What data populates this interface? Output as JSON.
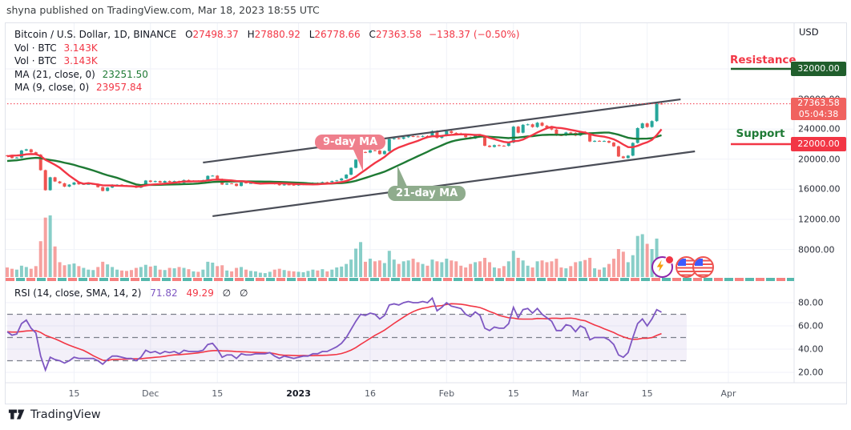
{
  "watermark": "shyna published on TradingView.com, Mar 18, 2023 18:55 UTC",
  "legend": {
    "symbol": "Bitcoin / U.S. Dollar, 1D, BINANCE",
    "o_label": "O",
    "o": "27498.37",
    "h_label": "H",
    "h": "27880.92",
    "l_label": "L",
    "l": "26778.66",
    "c_label": "C",
    "c": "27363.58",
    "change": "−138.37 (−0.50%)",
    "vol1_label": "Vol · BTC",
    "vol1_value": "3.143K",
    "vol2_label": "Vol · BTC",
    "vol2_value": "3.143K",
    "ma21_label": "MA (21, close, 0)",
    "ma21_value": "23251.50",
    "ma9_label": "MA (9, close, 0)",
    "ma9_value": "23957.84"
  },
  "rsi_legend": {
    "label": "RSI (14, close, SMA, 14, 2)",
    "value1": "71.82",
    "value2": "49.29",
    "empty1": "∅",
    "empty2": "∅"
  },
  "annotations": {
    "ma9_callout": "9-day MA",
    "ma21_callout": "21-day MA",
    "resistance_label": "Resistance",
    "support_label": "Support"
  },
  "price_axis": {
    "currency": "USD",
    "labels": [
      {
        "text": "28000.00",
        "value": 28000
      },
      {
        "text": "24000.00",
        "value": 24000
      },
      {
        "text": "20000.00",
        "value": 20000
      },
      {
        "text": "16000.00",
        "value": 16000
      },
      {
        "text": "12000.00",
        "value": 12000
      },
      {
        "text": "8000.00",
        "value": 8000
      }
    ],
    "resistance_badge": "32000.00",
    "support_badge": "22000.00",
    "price_badge": {
      "price": "27363.58",
      "countdown": "05:04:38"
    }
  },
  "rsi_axis": {
    "labels": [
      {
        "text": "80.00",
        "value": 80
      },
      {
        "text": "60.00",
        "value": 60
      },
      {
        "text": "40.00",
        "value": 40
      },
      {
        "text": "20.00",
        "value": 20
      }
    ]
  },
  "time_axis": {
    "labels": [
      {
        "text": "15",
        "index": 14,
        "bold": false
      },
      {
        "text": "Dec",
        "index": 30,
        "bold": false
      },
      {
        "text": "15",
        "index": 44,
        "bold": false
      },
      {
        "text": "2023",
        "index": 61,
        "bold": true
      },
      {
        "text": "16",
        "index": 76,
        "bold": false
      },
      {
        "text": "Feb",
        "index": 92,
        "bold": false
      },
      {
        "text": "15",
        "index": 106,
        "bold": false
      },
      {
        "text": "Mar",
        "index": 120,
        "bold": false
      },
      {
        "text": "15",
        "index": 134,
        "bold": false
      },
      {
        "text": "Apr",
        "index": 151,
        "bold": false
      }
    ]
  },
  "footer": {
    "brand": "TradingView"
  },
  "colors": {
    "up": "#26a69a",
    "down": "#ef5350",
    "ma_fast": "#f23645",
    "ma_slow": "#1e7a34",
    "rsi": "#7e57c2",
    "rsi_signal": "#f23645",
    "rsi_band": "rgba(126,87,194,0.09)",
    "rsi_dash": "#7b7f8a",
    "trendline": "#4a4d57",
    "price_line": "#f23645",
    "resistance_line": "#205e2c",
    "support_line": "#f23645",
    "grid": "#f0f2f8",
    "border": "#e0e3eb"
  },
  "chart_data": {
    "type": "candlestick+volume+rsi",
    "title": "Bitcoin / U.S. Dollar, 1D, BINANCE",
    "date_range": "2022-11-01 to 2023-03-18",
    "last_candle": {
      "open": 27498.37,
      "high": 27880.92,
      "low": 26778.66,
      "close": 27363.58,
      "change": -138.37,
      "change_pct": -0.5,
      "volume_btc_k": 3.143
    },
    "levels": {
      "resistance": 32000,
      "support": 22000,
      "last_price": 27363.58
    },
    "ma_periods": {
      "fast": 9,
      "slow": 21
    },
    "price_axis_ticks": [
      32000,
      28000,
      24000,
      20000,
      16000,
      12000,
      8000
    ],
    "rsi_axis_ticks": [
      80,
      60,
      40,
      20
    ],
    "rsi_levels": {
      "overbought": 70,
      "middle": 50,
      "oversold": 30,
      "last_rsi": 71.82,
      "last_signal": 49.29
    },
    "warmup_closes": [
      19050,
      19150,
      19380,
      19180,
      19070,
      19260,
      19550,
      19330,
      19040,
      19630,
      19170,
      19200,
      19570,
      19330,
      20080,
      20770,
      20290,
      20600,
      20810,
      20630,
      20490
    ],
    "closes": [
      20480,
      20150,
      20210,
      21150,
      21300,
      20920,
      20600,
      18540,
      15880,
      17590,
      17040,
      16800,
      16350,
      16620,
      16900,
      16660,
      16700,
      16700,
      16710,
      16280,
      15780,
      16220,
      16600,
      16610,
      16520,
      16460,
      16440,
      16220,
      16440,
      17160,
      16970,
      17090,
      16890,
      17100,
      16970,
      17090,
      16840,
      17230,
      17130,
      17130,
      17090,
      17210,
      17780,
      17810,
      17360,
      16630,
      16780,
      16740,
      16440,
      16900,
      16820,
      16820,
      16840,
      16840,
      16840,
      16920,
      16700,
      16540,
      16630,
      16600,
      16540,
      16620,
      16670,
      16670,
      16850,
      16830,
      16950,
      16940,
      17090,
      17180,
      17440,
      17940,
      18850,
      19930,
      20950,
      20880,
      21180,
      21140,
      20680,
      21080,
      22670,
      22780,
      22710,
      22920,
      23060,
      23020,
      23010,
      23080,
      23030,
      23740,
      22830,
      23130,
      23730,
      23490,
      23430,
      23330,
      22930,
      22760,
      23250,
      22960,
      21790,
      21630,
      21860,
      21780,
      21770,
      22200,
      24320,
      23520,
      24570,
      24630,
      24270,
      24840,
      24450,
      24180,
      23940,
      23180,
      23160,
      23550,
      23490,
      23140,
      23640,
      23470,
      22350,
      22430,
      22410,
      22410,
      22200,
      21710,
      20360,
      20150,
      20470,
      22160,
      24130,
      24750,
      24280,
      25060,
      27390,
      27363.58
    ],
    "volumes_k": [
      2.2,
      1.9,
      1.7,
      2.6,
      2.3,
      1.9,
      2.5,
      8.2,
      13.6,
      14.1,
      7.0,
      3.4,
      2.7,
      2.9,
      3.1,
      2.5,
      2.1,
      1.7,
      1.6,
      2.3,
      3.5,
      2.9,
      2.3,
      1.7,
      1.5,
      1.4,
      1.6,
      2.1,
      2.3,
      2.8,
      2.4,
      2.6,
      1.7,
      1.6,
      2.1,
      2.0,
      2.3,
      2.1,
      1.8,
      1.3,
      1.2,
      1.7,
      3.5,
      3.3,
      2.5,
      2.7,
      1.5,
      1.3,
      2.1,
      2.3,
      1.7,
      1.4,
      1.3,
      1.0,
      0.9,
      1.2,
      1.7,
      1.9,
      1.6,
      1.4,
      1.3,
      1.2,
      1.1,
      1.4,
      1.7,
      1.5,
      1.8,
      1.3,
      1.7,
      2.2,
      2.4,
      3.0,
      4.0,
      6.5,
      8.0,
      3.5,
      4.2,
      3.6,
      3.8,
      3.2,
      6.0,
      4.0,
      3.0,
      3.6,
      3.8,
      4.2,
      3.4,
      3.0,
      2.6,
      4.0,
      3.6,
      3.4,
      4.2,
      3.8,
      3.6,
      2.6,
      2.2,
      3.0,
      3.4,
      3.6,
      4.4,
      3.4,
      2.2,
      2.0,
      2.5,
      3.6,
      6.0,
      4.4,
      3.8,
      2.6,
      2.2,
      3.6,
      3.8,
      3.4,
      3.6,
      4.2,
      2.2,
      2.0,
      2.5,
      3.4,
      3.6,
      3.9,
      4.4,
      2.0,
      1.7,
      2.2,
      3.0,
      4.2,
      6.4,
      5.8,
      3.4,
      5.0,
      9.4,
      9.8,
      7.6,
      6.4,
      8.8,
      3.143
    ],
    "rsi_warmup": [
      54,
      55,
      53,
      56,
      58,
      55,
      53,
      56,
      57,
      54,
      52,
      55,
      56,
      54
    ],
    "rsi": [
      55,
      52,
      53,
      62,
      65,
      58,
      54,
      34,
      22,
      33,
      31,
      30,
      28,
      30,
      33,
      32,
      32,
      32,
      32,
      30,
      27,
      31,
      34,
      34,
      33,
      32,
      32,
      30,
      33,
      39,
      37,
      38,
      36,
      38,
      37,
      38,
      36,
      39,
      38,
      38,
      38,
      39,
      44,
      45,
      40,
      33,
      35,
      35,
      32,
      36,
      35,
      35,
      36,
      36,
      36,
      37,
      34,
      32,
      34,
      33,
      32,
      33,
      34,
      34,
      36,
      36,
      38,
      38,
      40,
      42,
      45,
      50,
      57,
      64,
      70,
      69,
      71,
      70,
      66,
      69,
      78,
      79,
      78,
      80,
      81,
      80,
      80,
      81,
      80,
      84,
      73,
      76,
      80,
      77,
      76,
      75,
      70,
      68,
      72,
      69,
      58,
      56,
      59,
      58,
      58,
      62,
      76,
      67,
      74,
      75,
      71,
      75,
      70,
      67,
      64,
      56,
      56,
      61,
      60,
      55,
      60,
      58,
      48,
      50,
      50,
      50,
      48,
      44,
      35,
      33,
      37,
      50,
      62,
      66,
      60,
      66,
      74,
      71.82
    ],
    "trendlines": {
      "upper": {
        "i1": 41,
        "p1": 19550,
        "i2": 141,
        "p2": 27950
      },
      "lower": {
        "i1": 43,
        "p1": 12430,
        "i2": 144,
        "p2": 21040
      }
    }
  }
}
